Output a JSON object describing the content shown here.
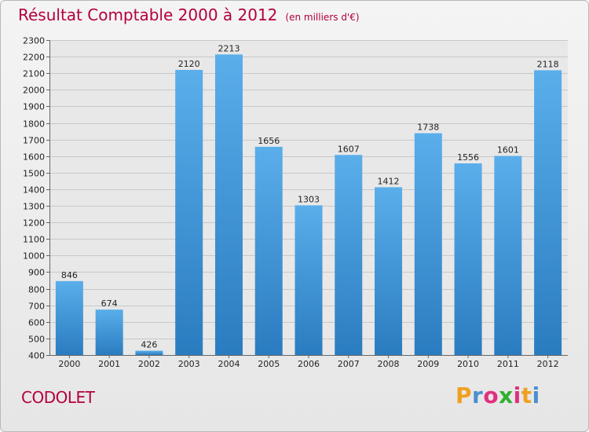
{
  "chart_data": {
    "type": "bar",
    "title": "Résultat Comptable 2000 à 2012",
    "subtitle": "(en milliers d'€)",
    "categories": [
      "2000",
      "2001",
      "2002",
      "2003",
      "2004",
      "2005",
      "2006",
      "2007",
      "2008",
      "2009",
      "2010",
      "2011",
      "2012"
    ],
    "values": [
      846,
      674,
      426,
      2120,
      2213,
      1656,
      1303,
      1607,
      1412,
      1738,
      1556,
      1601,
      2118
    ],
    "ylim": [
      400,
      2300
    ],
    "ytick_step": 100,
    "xlabel": "",
    "ylabel": "",
    "grid": true,
    "bar_color": "#3b91d3"
  },
  "place_name": "CODOLET",
  "brand": {
    "letters": [
      "P",
      "r",
      "o",
      "x",
      "i",
      "t",
      "i"
    ],
    "colors": [
      "#f0a020",
      "#4a8fd0",
      "#e03080",
      "#30b030",
      "#e03080",
      "#f0a020",
      "#4a8fd0"
    ]
  }
}
